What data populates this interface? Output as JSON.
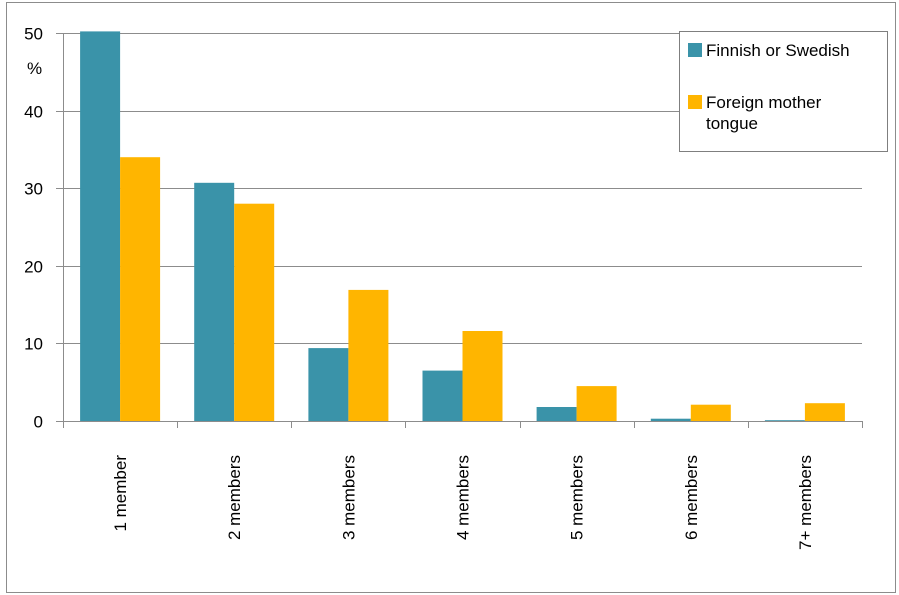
{
  "chart_data": {
    "type": "bar",
    "title": "",
    "xlabel": "",
    "ylabel": "%",
    "ylim": [
      0,
      50
    ],
    "yticks": [
      0,
      10,
      20,
      30,
      40,
      50
    ],
    "grid": true,
    "legend_position": "top-right",
    "categories": [
      "1 member",
      "2 members",
      "3 members",
      "4 members",
      "5 members",
      "6 members",
      "7+ members"
    ],
    "series": [
      {
        "name": "Finnish or Swedish",
        "color": "#3A93A9",
        "values": [
          50.2,
          30.7,
          9.4,
          6.5,
          1.8,
          0.3,
          0.1
        ]
      },
      {
        "name": "Foreign mother tongue",
        "color": "#FFB500",
        "values": [
          34.0,
          28.0,
          16.9,
          11.6,
          4.5,
          2.1,
          2.3
        ]
      }
    ],
    "legend_lines": [
      [
        "Finnish or Swedish"
      ],
      [
        "Foreign mother",
        "tongue"
      ]
    ]
  }
}
